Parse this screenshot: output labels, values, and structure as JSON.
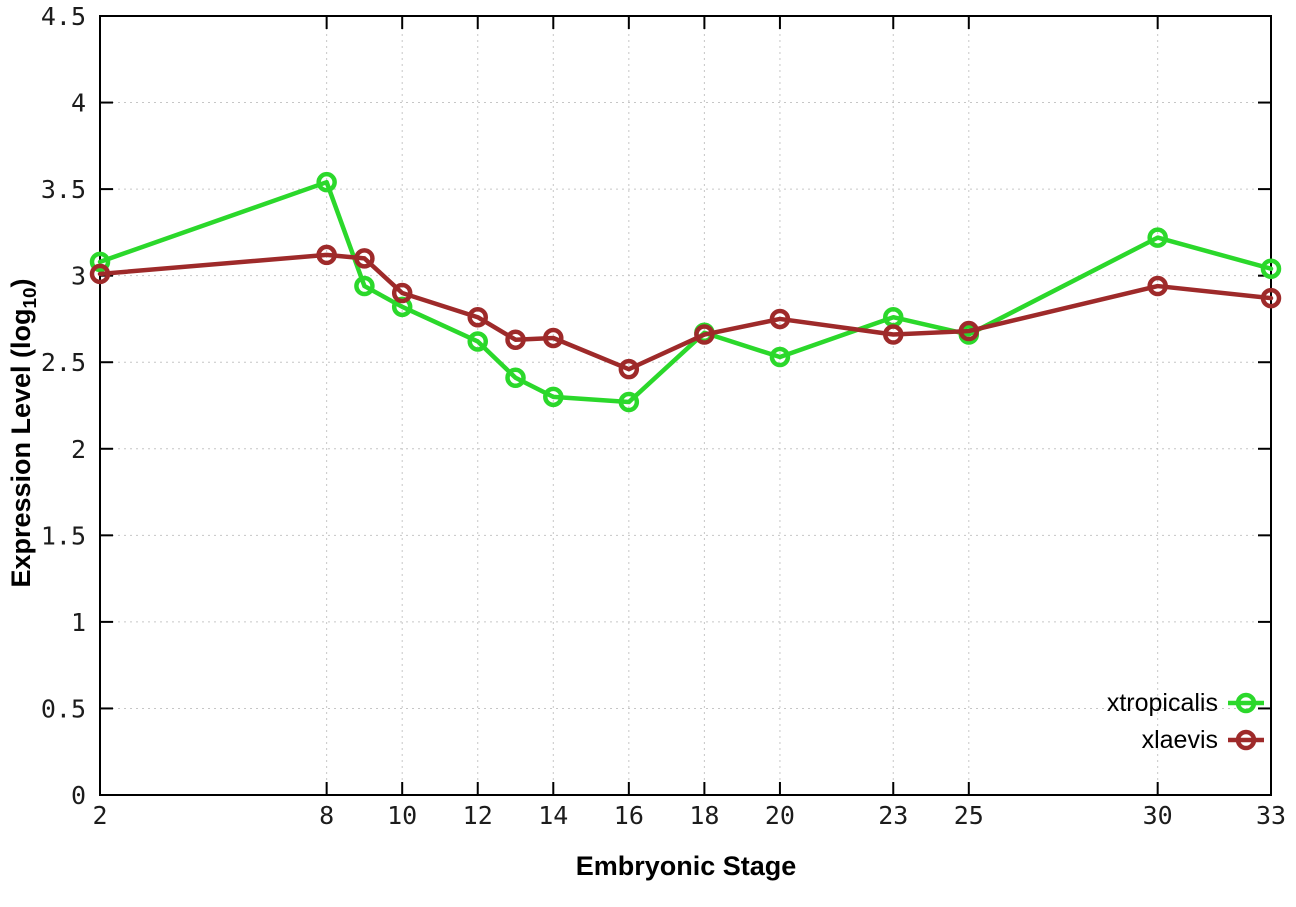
{
  "chart_data": {
    "type": "line",
    "title": "",
    "xlabel": "Embryonic Stage",
    "ylabel": "Expression Level (log10)",
    "ylabel_parts": {
      "prefix": "Expression Level (log",
      "sub": "10",
      "suffix": ")"
    },
    "x": [
      2,
      8,
      9,
      10,
      12,
      13,
      14,
      16,
      18,
      20,
      23,
      25,
      30,
      33
    ],
    "xticks": [
      2,
      8,
      10,
      12,
      14,
      16,
      18,
      20,
      23,
      25,
      30,
      33
    ],
    "yticks": [
      0,
      0.5,
      1,
      1.5,
      2,
      2.5,
      3,
      3.5,
      4,
      4.5
    ],
    "ytick_labels": [
      "0",
      "0.5",
      "1",
      "1.5",
      "2",
      "2.5",
      "3",
      "3.5",
      "4",
      "4.5"
    ],
    "xlim": [
      2,
      33
    ],
    "ylim": [
      0,
      4.5
    ],
    "grid": true,
    "grid_style": "dotted",
    "legend_position": "inside-bottom-right",
    "marker": "open-circle",
    "series": [
      {
        "name": "xtropicalis",
        "color": "#2bd82b",
        "values": [
          3.08,
          3.54,
          2.94,
          2.82,
          2.62,
          2.41,
          2.3,
          2.27,
          2.67,
          2.53,
          2.76,
          2.66,
          3.22,
          3.04
        ]
      },
      {
        "name": "xlaevis",
        "color": "#9e2a2a",
        "values": [
          3.01,
          3.12,
          3.1,
          2.9,
          2.76,
          2.63,
          2.64,
          2.46,
          2.66,
          2.75,
          2.66,
          2.68,
          2.94,
          2.87
        ]
      }
    ]
  },
  "colors": {
    "background": "#ffffff",
    "axis": "#000000",
    "grid": "#c6c6c6",
    "tick_label": "#1c1c1c"
  }
}
